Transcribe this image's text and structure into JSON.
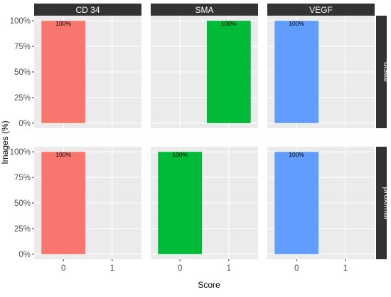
{
  "chart_data": {
    "type": "bar",
    "xlabel": "Score",
    "ylabel": "Images (%)",
    "categories": [
      "0",
      "1"
    ],
    "ylim": [
      0,
      100
    ],
    "yticks": [
      "0%",
      "25%",
      "50%",
      "75%",
      "100%"
    ],
    "grid": true,
    "columns": [
      "CD 34",
      "SMA",
      "VEGF"
    ],
    "rows": [
      "distal",
      "proximal"
    ],
    "colors": {
      "CD 34": "#F8766D",
      "SMA": "#00BA38",
      "VEGF": "#619CFF"
    },
    "panels": [
      {
        "row": "distal",
        "column": "CD 34",
        "category": "0",
        "value": 100,
        "label": "100%"
      },
      {
        "row": "distal",
        "column": "SMA",
        "category": "1",
        "value": 100,
        "label": "100%"
      },
      {
        "row": "distal",
        "column": "VEGF",
        "category": "0",
        "value": 100,
        "label": "100%"
      },
      {
        "row": "proximal",
        "column": "CD 34",
        "category": "0",
        "value": 100,
        "label": "100%"
      },
      {
        "row": "proximal",
        "column": "SMA",
        "category": "0",
        "value": 100,
        "label": "100%"
      },
      {
        "row": "proximal",
        "column": "VEGF",
        "category": "0",
        "value": 100,
        "label": "100%"
      }
    ]
  }
}
